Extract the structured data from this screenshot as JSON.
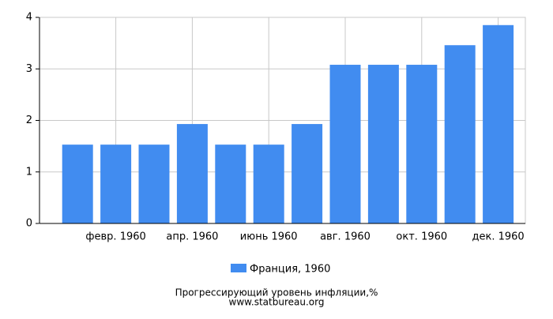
{
  "chart_data": {
    "type": "bar",
    "categories": [
      null,
      "февр. 1960",
      null,
      "апр. 1960",
      null,
      "июнь 1960",
      null,
      "авг. 1960",
      null,
      "окт. 1960",
      null,
      "дек. 1960"
    ],
    "series": [
      {
        "name": "Франция, 1960",
        "color": "#418cf0",
        "values": [
          1.53,
          1.53,
          1.53,
          1.93,
          1.53,
          1.53,
          1.93,
          3.08,
          3.08,
          3.08,
          3.46,
          3.85
        ]
      }
    ],
    "ylim": [
      0,
      4
    ],
    "yticks": [
      0,
      1,
      2,
      3,
      4
    ],
    "grid": true,
    "caption": "Прогрессирующий уровень инфляции,%",
    "source": "www.statbureau.org"
  }
}
